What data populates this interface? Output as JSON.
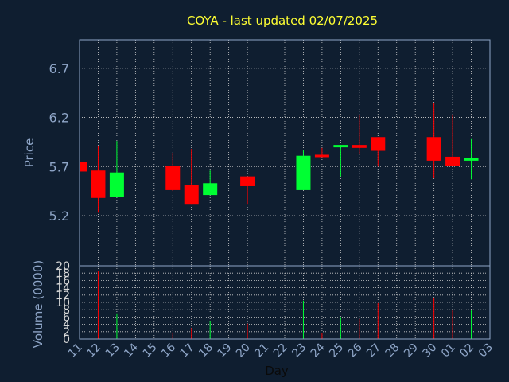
{
  "chart_data": {
    "type": "candlestick",
    "title": "COYA - last updated 02/07/2025",
    "price_panel": {
      "ylabel": "Price",
      "y_ticks": [
        5.2,
        5.7,
        6.2,
        6.7
      ],
      "y_tick_labels": [
        "5.2",
        "5.7",
        "6.2",
        "6.7"
      ],
      "ylim": [
        4.69,
        6.99
      ]
    },
    "volume_panel": {
      "ylabel": "Volume (0000)",
      "y_ticks": [
        0,
        2,
        4,
        6,
        8,
        10,
        12,
        14,
        16,
        18,
        20
      ],
      "y_tick_labels": [
        "0",
        "2",
        "4",
        "6",
        "8",
        "10",
        "12",
        "14",
        "16",
        "18",
        "20"
      ],
      "ylim": [
        0,
        20
      ]
    },
    "xlabel": "Day",
    "x_ticks": [
      "11",
      "12",
      "13",
      "14",
      "15",
      "16",
      "17",
      "18",
      "19",
      "20",
      "21",
      "22",
      "23",
      "24",
      "25",
      "26",
      "27",
      "28",
      "29",
      "30",
      "01",
      "02",
      "03"
    ],
    "grid": true,
    "colors": {
      "background": "#0f1e30",
      "up": "#00ff33",
      "down": "#ff0000",
      "grid": "#d0d0d0",
      "axis": "#8fa6c8",
      "title": "#ffff33"
    },
    "candles": [
      {
        "day": "11",
        "open": 5.75,
        "high": 5.75,
        "low": 5.65,
        "close": 5.65,
        "volume": 0
      },
      {
        "day": "12",
        "open": 5.66,
        "high": 5.91,
        "low": 5.23,
        "close": 5.38,
        "volume": 18.5
      },
      {
        "day": "13",
        "open": 5.39,
        "high": 5.96,
        "low": 5.39,
        "close": 5.64,
        "volume": 7
      },
      {
        "day": "16",
        "open": 5.71,
        "high": 5.84,
        "low": 5.45,
        "close": 5.46,
        "volume": 1.8
      },
      {
        "day": "17",
        "open": 5.51,
        "high": 5.88,
        "low": 5.32,
        "close": 5.32,
        "volume": 3
      },
      {
        "day": "18",
        "open": 5.41,
        "high": 5.66,
        "low": 5.41,
        "close": 5.53,
        "volume": 5
      },
      {
        "day": "20",
        "open": 5.6,
        "high": 5.6,
        "low": 5.32,
        "close": 5.5,
        "volume": 4.2
      },
      {
        "day": "23",
        "open": 5.46,
        "high": 5.87,
        "low": 5.46,
        "close": 5.81,
        "volume": 10.5
      },
      {
        "day": "24",
        "open": 5.82,
        "high": 5.89,
        "low": 5.8,
        "close": 5.8,
        "volume": 1.6
      },
      {
        "day": "25",
        "open": 5.91,
        "high": 5.92,
        "low": 5.6,
        "close": 5.92,
        "volume": 6
      },
      {
        "day": "26",
        "open": 5.92,
        "high": 6.23,
        "low": 5.83,
        "close": 5.89,
        "volume": 5.5
      },
      {
        "day": "27",
        "open": 6.0,
        "high": 6.0,
        "low": 5.7,
        "close": 5.86,
        "volume": 9.8
      },
      {
        "day": "30",
        "open": 6.0,
        "high": 6.35,
        "low": 5.58,
        "close": 5.76,
        "volume": 11.2
      },
      {
        "day": "01",
        "open": 5.8,
        "high": 6.23,
        "low": 5.7,
        "close": 5.71,
        "volume": 7.8
      },
      {
        "day": "02",
        "open": 5.76,
        "high": 5.98,
        "low": 5.57,
        "close": 5.79,
        "volume": 7.8
      }
    ]
  }
}
